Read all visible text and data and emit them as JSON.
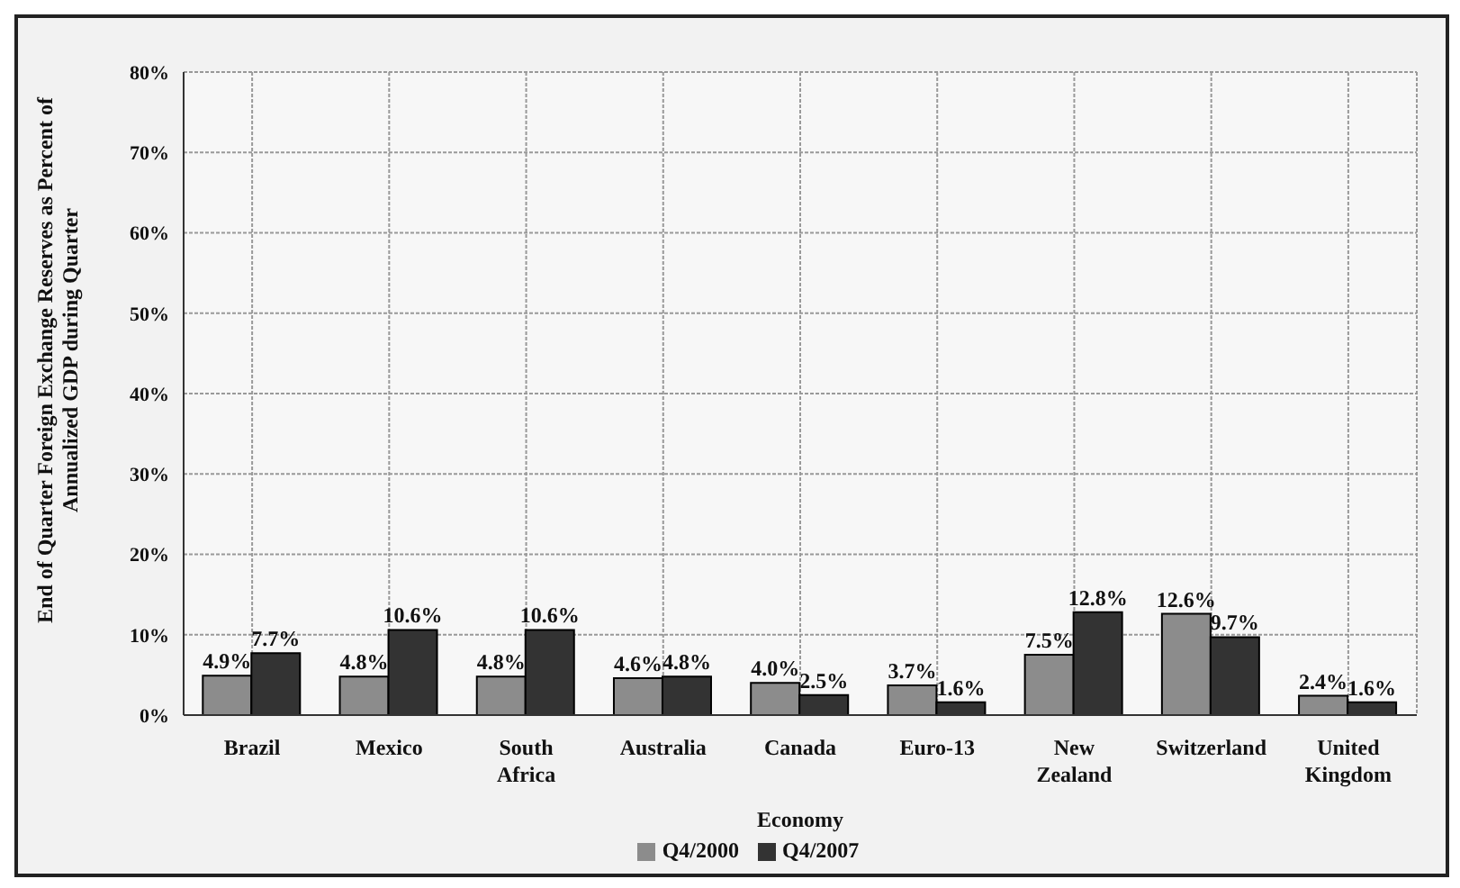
{
  "chart_data": {
    "type": "bar",
    "xlabel": "Economy",
    "ylabel": "End of Quarter Foreign Exchange Reserves as Percent of Annualized GDP during Quarter",
    "categories": [
      "Brazil",
      "Mexico",
      "South Africa",
      "Australia",
      "Canada",
      "Euro-13",
      "New Zealand",
      "Switzerland",
      "United Kingdom"
    ],
    "series": [
      {
        "name": "Q4/2000",
        "color": "#8c8c8c",
        "values": [
          4.9,
          4.8,
          4.8,
          4.6,
          4.0,
          3.7,
          7.5,
          12.6,
          2.4
        ],
        "value_labels": [
          "4.9%",
          "4.8%",
          "4.8%",
          "4.6%",
          "4.0%",
          "3.7%",
          "7.5%",
          "12.6%",
          "2.4%"
        ]
      },
      {
        "name": "Q4/2007",
        "color": "#333333",
        "values": [
          7.7,
          10.6,
          10.6,
          4.8,
          2.5,
          1.6,
          12.8,
          9.7,
          1.6
        ],
        "value_labels": [
          "7.7%",
          "10.6%",
          "10.6%",
          "4.8%",
          "2.5%",
          "1.6%",
          "12.8%",
          "9.7%",
          "1.6%"
        ]
      }
    ],
    "ylim": [
      0,
      80
    ],
    "yticks": [
      {
        "value": 0,
        "label": "0%"
      },
      {
        "value": 10,
        "label": "10%"
      },
      {
        "value": 20,
        "label": "20%"
      },
      {
        "value": 30,
        "label": "30%"
      },
      {
        "value": 40,
        "label": "40%"
      },
      {
        "value": 50,
        "label": "50%"
      },
      {
        "value": 60,
        "label": "60%"
      },
      {
        "value": 70,
        "label": "70%"
      },
      {
        "value": 80,
        "label": "80%"
      }
    ],
    "grid": true,
    "legend": "bottom"
  }
}
